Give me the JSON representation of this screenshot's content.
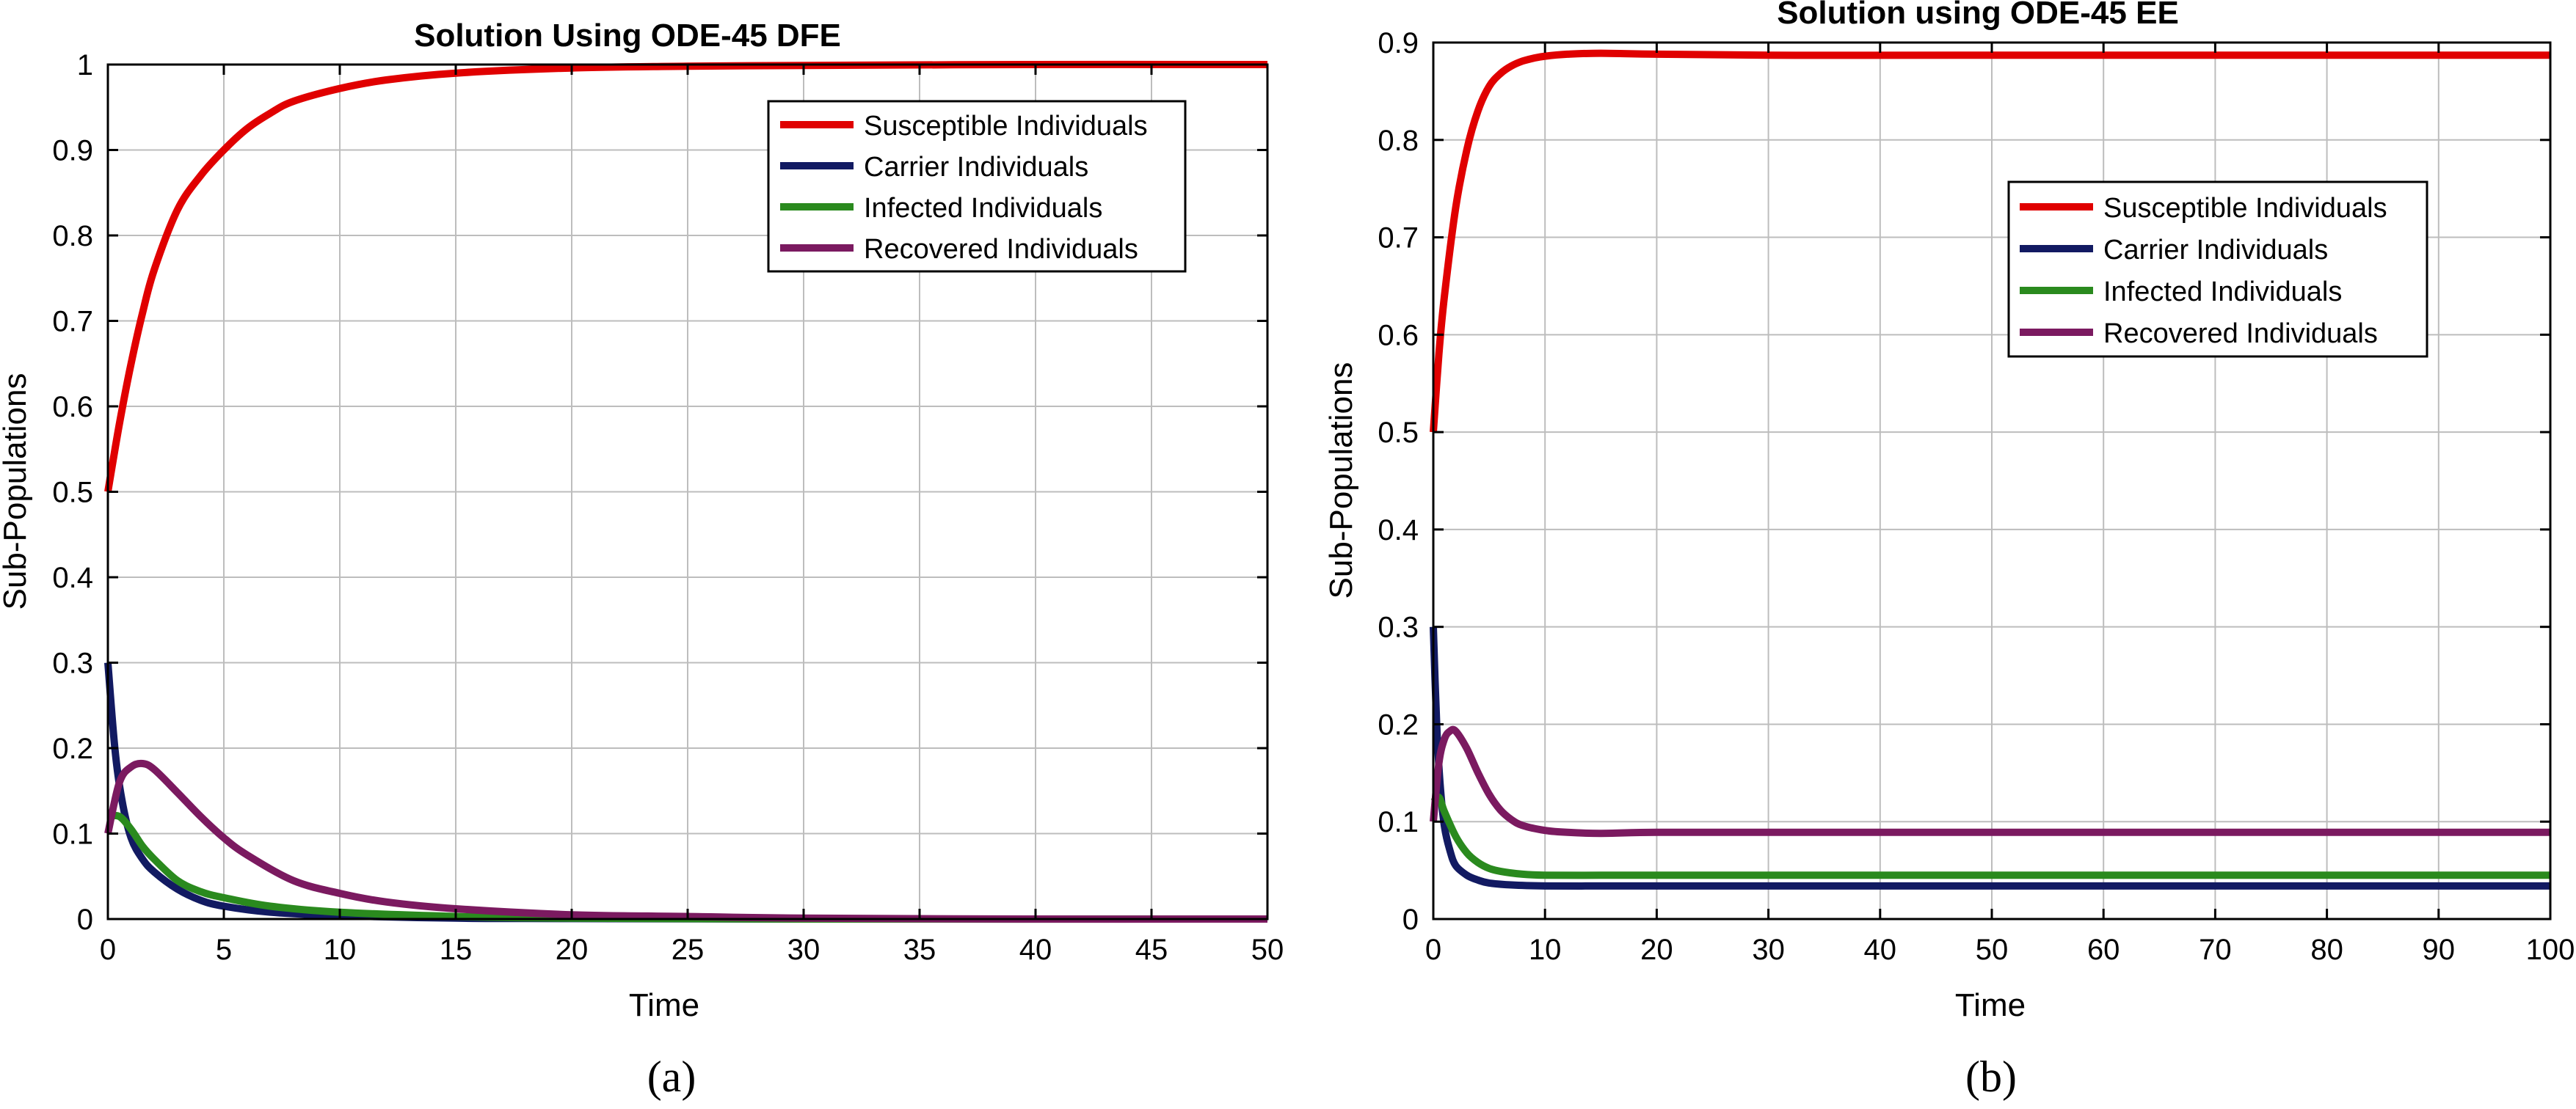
{
  "figure": {
    "captions": [
      "(a)",
      "(b)"
    ]
  },
  "colors": {
    "susceptible": "#E00000",
    "carrier": "#121A62",
    "infected": "#2A8A1E",
    "recovered": "#7B1A60",
    "grid": "#BDBDBD",
    "axis": "#000000"
  },
  "chart_data": [
    {
      "type": "line",
      "title": "Solution Using ODE-45 DFE",
      "xlabel": "Time",
      "ylabel": "Sub-Populations",
      "xlim": [
        0,
        50
      ],
      "ylim": [
        0,
        1
      ],
      "xticks": [
        0,
        5,
        10,
        15,
        20,
        25,
        30,
        35,
        40,
        45,
        50
      ],
      "yticks": [
        0,
        0.1,
        0.2,
        0.3,
        0.4,
        0.5,
        0.6,
        0.7,
        0.8,
        0.9,
        1
      ],
      "xtick_labels": [
        "0",
        "5",
        "10",
        "15",
        "20",
        "25",
        "30",
        "35",
        "40",
        "45",
        "50"
      ],
      "ytick_labels": [
        "0",
        "0.1",
        "0.2",
        "0.3",
        "0.4",
        "0.5",
        "0.6",
        "0.7",
        "0.8",
        "0.9",
        "1"
      ],
      "grid": true,
      "legend_position": "top-right",
      "series": [
        {
          "name": "Susceptible Individuals",
          "color_key": "susceptible",
          "x": [
            0,
            0.5,
            1,
            1.5,
            2,
            3,
            4,
            5,
            6,
            7,
            8,
            10,
            12,
            15,
            20,
            25,
            30,
            40,
            50
          ],
          "y": [
            0.5,
            0.58,
            0.65,
            0.71,
            0.76,
            0.83,
            0.87,
            0.9,
            0.925,
            0.943,
            0.957,
            0.972,
            0.982,
            0.99,
            0.996,
            0.998,
            0.999,
            1.0,
            1.0
          ]
        },
        {
          "name": "Carrier Individuals",
          "color_key": "carrier",
          "x": [
            0,
            0.3,
            0.6,
            1,
            1.5,
            2,
            3,
            4,
            5,
            7,
            10,
            15,
            20,
            30,
            50
          ],
          "y": [
            0.3,
            0.2,
            0.14,
            0.095,
            0.07,
            0.055,
            0.035,
            0.022,
            0.015,
            0.008,
            0.004,
            0.001,
            0.0005,
            0.0,
            0.0
          ]
        },
        {
          "name": "Infected Individuals",
          "color_key": "infected",
          "x": [
            0,
            0.5,
            1,
            1.5,
            2,
            3,
            4,
            5,
            7,
            10,
            15,
            20,
            30,
            50
          ],
          "y": [
            0.12,
            0.12,
            0.105,
            0.085,
            0.07,
            0.045,
            0.032,
            0.025,
            0.015,
            0.008,
            0.003,
            0.001,
            0.0,
            0.0
          ]
        },
        {
          "name": "Recovered Individuals",
          "color_key": "recovered",
          "x": [
            0,
            0.5,
            1,
            1.5,
            2,
            3,
            4,
            5,
            6,
            8,
            10,
            12,
            15,
            20,
            25,
            30,
            40,
            50
          ],
          "y": [
            0.1,
            0.16,
            0.178,
            0.182,
            0.175,
            0.148,
            0.12,
            0.095,
            0.075,
            0.045,
            0.03,
            0.02,
            0.012,
            0.005,
            0.003,
            0.001,
            0.0,
            0.0
          ]
        }
      ]
    },
    {
      "type": "line",
      "title": "Solution using ODE-45 EE",
      "xlabel": "Time",
      "ylabel": "Sub-Populations",
      "xlim": [
        0,
        100
      ],
      "ylim": [
        0,
        0.9
      ],
      "xticks": [
        0,
        10,
        20,
        30,
        40,
        50,
        60,
        70,
        80,
        90,
        100
      ],
      "yticks": [
        0,
        0.1,
        0.2,
        0.3,
        0.4,
        0.5,
        0.6,
        0.7,
        0.8,
        0.9
      ],
      "xtick_labels": [
        "0",
        "10",
        "20",
        "30",
        "40",
        "50",
        "60",
        "70",
        "80",
        "90",
        "100"
      ],
      "ytick_labels": [
        "0",
        "0.1",
        "0.2",
        "0.3",
        "0.4",
        "0.5",
        "0.6",
        "0.7",
        "0.8",
        "0.9"
      ],
      "grid": true,
      "legend_position": "right-upper",
      "series": [
        {
          "name": "Susceptible Individuals",
          "color_key": "susceptible",
          "x": [
            0,
            0.5,
            1,
            2,
            3,
            4,
            5,
            6,
            7,
            8,
            9,
            10,
            12,
            15,
            20,
            30,
            50,
            100
          ],
          "y": [
            0.5,
            0.58,
            0.64,
            0.73,
            0.79,
            0.83,
            0.855,
            0.868,
            0.876,
            0.881,
            0.884,
            0.886,
            0.888,
            0.889,
            0.888,
            0.887,
            0.887,
            0.887
          ]
        },
        {
          "name": "Carrier Individuals",
          "color_key": "carrier",
          "x": [
            0,
            0.3,
            0.6,
            1,
            1.5,
            2,
            3,
            4,
            5,
            7,
            10,
            15,
            20,
            50,
            100
          ],
          "y": [
            0.3,
            0.2,
            0.14,
            0.095,
            0.07,
            0.055,
            0.045,
            0.04,
            0.037,
            0.035,
            0.034,
            0.034,
            0.034,
            0.034,
            0.034
          ]
        },
        {
          "name": "Infected Individuals",
          "color_key": "infected",
          "x": [
            0,
            0.5,
            1,
            2,
            3,
            4,
            5,
            6,
            8,
            10,
            15,
            20,
            50,
            100
          ],
          "y": [
            0.12,
            0.125,
            0.11,
            0.085,
            0.068,
            0.058,
            0.052,
            0.049,
            0.046,
            0.045,
            0.045,
            0.045,
            0.045,
            0.045
          ]
        },
        {
          "name": "Recovered Individuals",
          "color_key": "recovered",
          "x": [
            0,
            0.5,
            1,
            1.5,
            2,
            3,
            4,
            5,
            6,
            7,
            8,
            10,
            12,
            15,
            20,
            30,
            50,
            100
          ],
          "y": [
            0.1,
            0.16,
            0.185,
            0.193,
            0.193,
            0.175,
            0.15,
            0.128,
            0.112,
            0.102,
            0.096,
            0.091,
            0.089,
            0.088,
            0.089,
            0.089,
            0.089,
            0.089
          ]
        }
      ]
    }
  ]
}
